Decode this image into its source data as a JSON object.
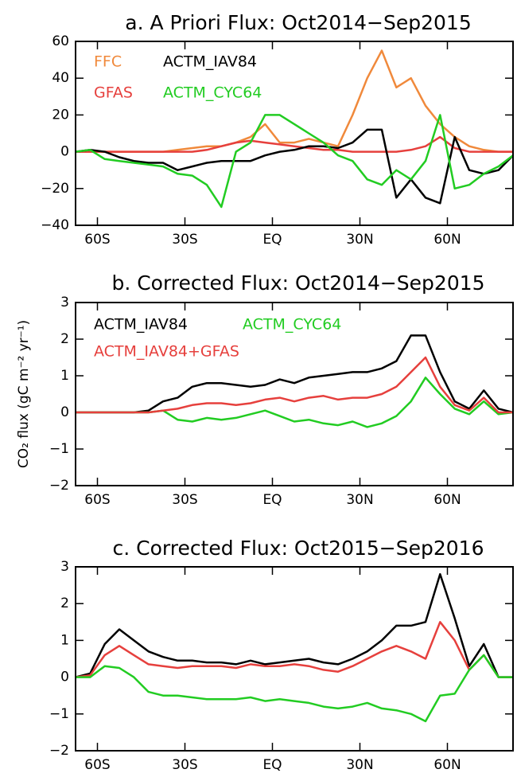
{
  "chart_data": [
    {
      "type": "line",
      "title": "a. A Priori Flux: Oct2014−Sep2015",
      "x": [
        -67.5,
        -62.5,
        -57.5,
        -52.5,
        -47.5,
        -42.5,
        -37.5,
        -32.5,
        -27.5,
        -22.5,
        -17.5,
        -12.5,
        -7.5,
        -2.5,
        2.5,
        7.5,
        12.5,
        17.5,
        22.5,
        27.5,
        32.5,
        37.5,
        42.5,
        47.5,
        52.5,
        57.5,
        62.5,
        67.5,
        72.5,
        77.5,
        82.5
      ],
      "xlim": [
        -67.5,
        82.5
      ],
      "xticks": [
        {
          "value": -60,
          "label": "60S"
        },
        {
          "value": -30,
          "label": "30S"
        },
        {
          "value": 0,
          "label": "EQ"
        },
        {
          "value": 30,
          "label": "30N"
        },
        {
          "value": 60,
          "label": "60N"
        }
      ],
      "ylim": [
        -40,
        60
      ],
      "yticks": [
        {
          "value": -40,
          "label": "−40"
        },
        {
          "value": -20,
          "label": "−20"
        },
        0,
        20,
        40,
        60
      ],
      "series": [
        {
          "name": "FFC",
          "color": "#f0893b",
          "values": [
            0,
            0,
            0,
            0,
            0,
            0,
            0,
            1,
            2,
            3,
            3,
            5,
            8,
            15,
            5,
            5,
            7,
            5,
            3,
            20,
            40,
            55,
            35,
            40,
            25,
            15,
            8,
            3,
            1,
            0,
            0
          ]
        },
        {
          "name": "GFAS",
          "color": "#e6403d",
          "values": [
            0,
            0,
            0,
            0,
            0,
            0,
            0,
            0,
            0,
            1,
            3,
            5,
            6,
            5,
            4,
            3,
            2,
            1,
            1,
            0,
            0,
            0,
            0,
            1,
            3,
            8,
            2,
            0,
            0,
            0,
            0
          ]
        },
        {
          "name": "ACTM_IAV84",
          "color": "#000000",
          "values": [
            0,
            1,
            0,
            -3,
            -5,
            -6,
            -6,
            -10,
            -8,
            -6,
            -5,
            -5,
            -5,
            -2,
            0,
            1,
            3,
            3,
            2,
            5,
            12,
            12,
            -25,
            -15,
            -25,
            -28,
            8,
            -10,
            -12,
            -10,
            -2
          ]
        },
        {
          "name": "ACTM_CYC64",
          "color": "#22cc22",
          "values": [
            0,
            1,
            -4,
            -5,
            -6,
            -7,
            -8,
            -12,
            -13,
            -18,
            -30,
            0,
            5,
            20,
            20,
            15,
            10,
            5,
            -2,
            -5,
            -15,
            -18,
            -10,
            -15,
            -5,
            20,
            -20,
            -18,
            -12,
            -8,
            -2
          ]
        }
      ]
    },
    {
      "type": "line",
      "title": "b. Corrected Flux: Oct2014−Sep2015",
      "ylabel": "CO₂ flux (gC m⁻² yr⁻¹)",
      "x": [
        -67.5,
        -62.5,
        -57.5,
        -52.5,
        -47.5,
        -42.5,
        -37.5,
        -32.5,
        -27.5,
        -22.5,
        -17.5,
        -12.5,
        -7.5,
        -2.5,
        2.5,
        7.5,
        12.5,
        17.5,
        22.5,
        27.5,
        32.5,
        37.5,
        42.5,
        47.5,
        52.5,
        57.5,
        62.5,
        67.5,
        72.5,
        77.5,
        82.5
      ],
      "xlim": [
        -67.5,
        82.5
      ],
      "xticks": [
        {
          "value": -60,
          "label": "60S"
        },
        {
          "value": -30,
          "label": "30S"
        },
        {
          "value": 0,
          "label": "EQ"
        },
        {
          "value": 30,
          "label": "30N"
        },
        {
          "value": 60,
          "label": "60N"
        }
      ],
      "ylim": [
        -2,
        3
      ],
      "yticks": [
        {
          "value": -2,
          "label": "−2"
        },
        {
          "value": -1,
          "label": "−1"
        },
        0,
        1,
        2,
        3
      ],
      "series": [
        {
          "name": "ACTM_IAV84",
          "color": "#000000",
          "values": [
            0,
            0,
            0,
            0,
            0,
            0.05,
            0.3,
            0.4,
            0.7,
            0.8,
            0.8,
            0.75,
            0.7,
            0.75,
            0.9,
            0.8,
            0.95,
            1,
            1.05,
            1.1,
            1.1,
            1.2,
            1.4,
            2.1,
            2.1,
            1.1,
            0.3,
            0.1,
            0.6,
            0.1,
            0
          ]
        },
        {
          "name": "ACTM_CYC64",
          "color": "#22cc22",
          "values": [
            0,
            0,
            0,
            0,
            0,
            0,
            0.05,
            -0.2,
            -0.25,
            -0.15,
            -0.2,
            -0.15,
            -0.05,
            0.05,
            -0.1,
            -0.25,
            -0.2,
            -0.3,
            -0.35,
            -0.25,
            -0.4,
            -0.3,
            -0.1,
            0.3,
            0.95,
            0.5,
            0.1,
            -0.05,
            0.3,
            -0.05,
            0
          ]
        },
        {
          "name": "ACTM_IAV84+GFAS",
          "color": "#e6403d",
          "values": [
            0,
            0,
            0,
            0,
            0,
            0,
            0.05,
            0.1,
            0.2,
            0.25,
            0.25,
            0.2,
            0.25,
            0.35,
            0.4,
            0.3,
            0.4,
            0.45,
            0.35,
            0.4,
            0.4,
            0.5,
            0.7,
            1.1,
            1.5,
            0.7,
            0.2,
            0.05,
            0.4,
            0,
            0
          ]
        }
      ]
    },
    {
      "type": "line",
      "title": "c. Corrected Flux: Oct2015−Sep2016",
      "x": [
        -67.5,
        -62.5,
        -57.5,
        -52.5,
        -47.5,
        -42.5,
        -37.5,
        -32.5,
        -27.5,
        -22.5,
        -17.5,
        -12.5,
        -7.5,
        -2.5,
        2.5,
        7.5,
        12.5,
        17.5,
        22.5,
        27.5,
        32.5,
        37.5,
        42.5,
        47.5,
        52.5,
        57.5,
        62.5,
        67.5,
        72.5,
        77.5,
        82.5
      ],
      "xlim": [
        -67.5,
        82.5
      ],
      "xticks": [
        {
          "value": -60,
          "label": "60S"
        },
        {
          "value": -30,
          "label": "30S"
        },
        {
          "value": 0,
          "label": "EQ"
        },
        {
          "value": 30,
          "label": "30N"
        },
        {
          "value": 60,
          "label": "60N"
        }
      ],
      "ylim": [
        -2,
        3
      ],
      "yticks": [
        {
          "value": -2,
          "label": "−2"
        },
        {
          "value": -1,
          "label": "−1"
        },
        0,
        1,
        2,
        3
      ],
      "series": [
        {
          "color": "#000000",
          "values": [
            0,
            0.1,
            0.9,
            1.3,
            1.0,
            0.7,
            0.55,
            0.45,
            0.45,
            0.4,
            0.4,
            0.35,
            0.45,
            0.35,
            0.4,
            0.45,
            0.5,
            0.4,
            0.35,
            0.5,
            0.7,
            1.0,
            1.4,
            1.4,
            1.5,
            2.8,
            1.6,
            0.3,
            0.9,
            0,
            0
          ]
        },
        {
          "color": "#e6403d",
          "values": [
            0,
            0.05,
            0.6,
            0.85,
            0.6,
            0.35,
            0.3,
            0.25,
            0.3,
            0.3,
            0.3,
            0.25,
            0.35,
            0.3,
            0.3,
            0.35,
            0.3,
            0.2,
            0.15,
            0.3,
            0.5,
            0.7,
            0.85,
            0.7,
            0.5,
            1.5,
            1.0,
            0.2,
            0.6,
            0,
            0
          ]
        },
        {
          "color": "#22cc22",
          "values": [
            0,
            0,
            0.3,
            0.25,
            0,
            -0.4,
            -0.5,
            -0.5,
            -0.55,
            -0.6,
            -0.6,
            -0.6,
            -0.55,
            -0.65,
            -0.6,
            -0.65,
            -0.7,
            -0.8,
            -0.85,
            -0.8,
            -0.7,
            -0.85,
            -0.9,
            -1.0,
            -1.2,
            -0.5,
            -0.45,
            0.2,
            0.6,
            0,
            0
          ]
        }
      ]
    }
  ]
}
